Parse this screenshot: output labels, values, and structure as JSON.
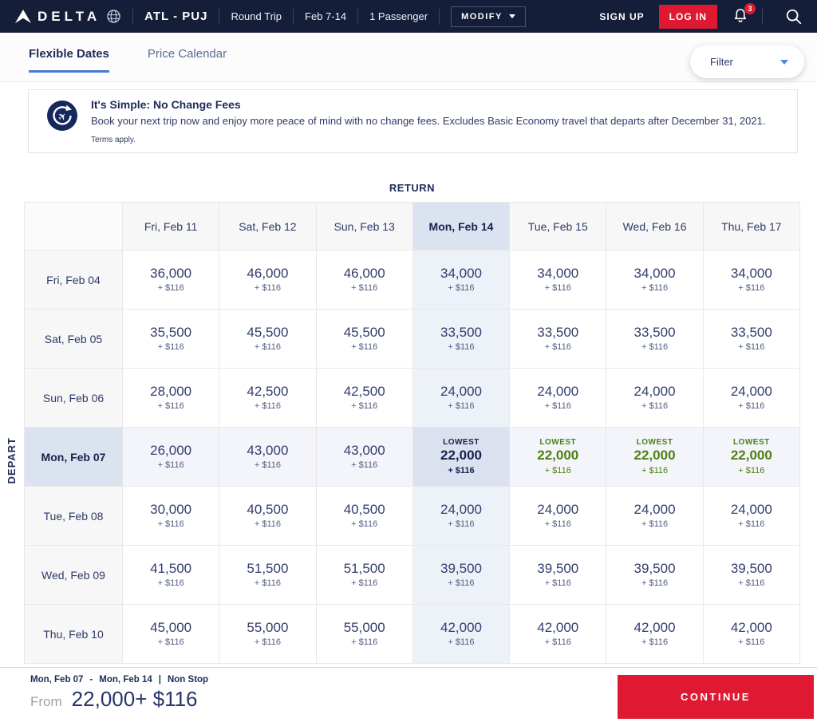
{
  "header": {
    "brand": "DELTA",
    "route": "ATL - PUJ",
    "trip_type": "Round Trip",
    "dates": "Feb 7-14",
    "passengers": "1 Passenger",
    "modify_label": "MODIFY",
    "sign_up_label": "SIGN UP",
    "log_in_label": "LOG IN",
    "notification_count": "3"
  },
  "tabs": {
    "items": [
      {
        "label": "Flexible Dates",
        "active": true
      },
      {
        "label": "Price Calendar",
        "active": false
      }
    ],
    "filter_label": "Filter"
  },
  "banner": {
    "title": "It's Simple: No Change Fees",
    "description": "Book your next trip now and enjoy more peace of mind with no change fees. Excludes Basic Economy travel that departs after December 31, 2021.",
    "terms": "Terms apply."
  },
  "matrix": {
    "axis_return": "RETURN",
    "axis_depart": "DEPART",
    "lowest_label": "LOWEST",
    "fee": "+ $116",
    "columns": [
      "Fri, Feb 11",
      "Sat, Feb 12",
      "Sun, Feb 13",
      "Mon, Feb 14",
      "Tue, Feb 15",
      "Wed, Feb 16",
      "Thu, Feb 17"
    ],
    "selected_column_index": 3,
    "selected_row_index": 3,
    "rows": [
      {
        "label": "Fri, Feb 04",
        "miles": [
          "36,000",
          "46,000",
          "46,000",
          "34,000",
          "34,000",
          "34,000",
          "34,000"
        ]
      },
      {
        "label": "Sat, Feb 05",
        "miles": [
          "35,500",
          "45,500",
          "45,500",
          "33,500",
          "33,500",
          "33,500",
          "33,500"
        ]
      },
      {
        "label": "Sun, Feb 06",
        "miles": [
          "28,000",
          "42,500",
          "42,500",
          "24,000",
          "24,000",
          "24,000",
          "24,000"
        ]
      },
      {
        "label": "Mon, Feb 07",
        "miles": [
          "26,000",
          "43,000",
          "43,000",
          "22,000",
          "22,000",
          "22,000",
          "22,000"
        ],
        "lowest_flags": [
          false,
          false,
          false,
          true,
          true,
          true,
          true
        ],
        "green_flags": [
          false,
          false,
          false,
          false,
          true,
          true,
          true
        ]
      },
      {
        "label": "Tue, Feb 08",
        "miles": [
          "30,000",
          "40,500",
          "40,500",
          "24,000",
          "24,000",
          "24,000",
          "24,000"
        ]
      },
      {
        "label": "Wed, Feb 09",
        "miles": [
          "41,500",
          "51,500",
          "51,500",
          "39,500",
          "39,500",
          "39,500",
          "39,500"
        ]
      },
      {
        "label": "Thu, Feb 10",
        "miles": [
          "45,000",
          "55,000",
          "55,000",
          "42,000",
          "42,000",
          "42,000",
          "42,000"
        ]
      }
    ]
  },
  "footer": {
    "depart_date": "Mon, Feb 07",
    "dash": "-",
    "return_date": "Mon, Feb 14",
    "pipe": "|",
    "stops": "Non Stop",
    "from_label": "From",
    "price": "22,000+ $116",
    "continue_label": "CONTINUE"
  },
  "icons": {
    "plane": "✈"
  },
  "colors": {
    "nav_bg": "#151e38",
    "accent_red": "#e01933",
    "navy_text": "#1c2b59",
    "lowest_green": "#4d8111",
    "highlight": "#dce3f0"
  }
}
